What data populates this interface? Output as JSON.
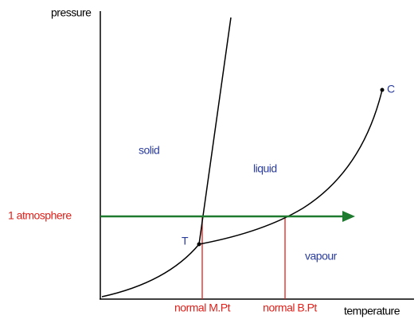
{
  "axes": {
    "y_label": "pressure",
    "x_label": "temperature"
  },
  "regions": {
    "solid": "solid",
    "liquid": "liquid",
    "vapour": "vapour"
  },
  "points": {
    "triple": "T",
    "critical": "C"
  },
  "lines": {
    "pressure_line": "1 atmosphere",
    "melting_point": "normal M.Pt",
    "boiling_point": "normal B.Pt"
  }
}
